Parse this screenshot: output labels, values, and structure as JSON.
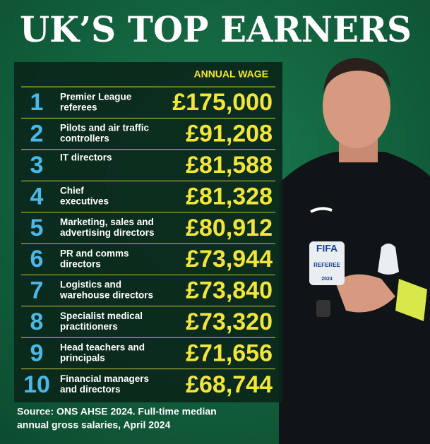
{
  "header": {
    "title": "UK’S TOP EARNERS"
  },
  "table": {
    "column_header": "ANNUAL WAGE",
    "rows": [
      {
        "rank": "1",
        "job": [
          "Premier League",
          "referees"
        ],
        "wage": "£175,000"
      },
      {
        "rank": "2",
        "job": [
          "Pilots and air traffic",
          "controllers"
        ],
        "wage": "£91,208"
      },
      {
        "rank": "3",
        "job": [
          "IT directors"
        ],
        "wage": "£81,588"
      },
      {
        "rank": "4",
        "job": [
          "Chief",
          "executives"
        ],
        "wage": "£81,328"
      },
      {
        "rank": "5",
        "job": [
          "Marketing, sales and",
          "advertising directors"
        ],
        "wage": "£80,912"
      },
      {
        "rank": "6",
        "job": [
          "PR and comms",
          "directors"
        ],
        "wage": "£73,944"
      },
      {
        "rank": "7",
        "job": [
          "Logistics and",
          "warehouse directors"
        ],
        "wage": "£73,840"
      },
      {
        "rank": "8",
        "job": [
          "Specialist medical",
          "practitioners"
        ],
        "wage": "£73,320"
      },
      {
        "rank": "9",
        "job": [
          "Head teachers and",
          "principals"
        ],
        "wage": "£71,656"
      },
      {
        "rank": "10",
        "job": [
          "Financial managers",
          "and directors"
        ],
        "wage": "£68,744"
      }
    ]
  },
  "source": [
    "Source: ONS AHSE 2024. Full-time median",
    "annual gross salaries, April 2024"
  ],
  "photo": {
    "badge": [
      "FIFA",
      "REFEREE",
      "2024"
    ]
  }
}
